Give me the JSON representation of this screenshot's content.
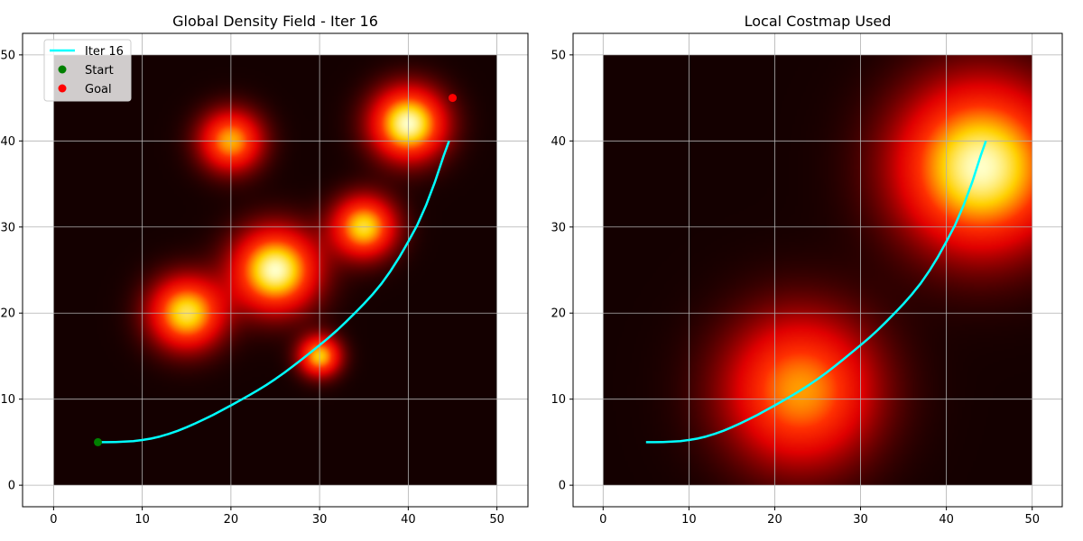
{
  "chart_data": [
    {
      "type": "heatmap",
      "title": "Global Density Field - Iter 16",
      "xlim": [
        -3.5,
        53.5
      ],
      "ylim": [
        -2.5,
        52.5
      ],
      "xticks": [
        0,
        10,
        20,
        30,
        40,
        50
      ],
      "yticks": [
        0,
        10,
        20,
        30,
        40,
        50
      ],
      "grid": true,
      "field_extent": [
        0,
        50,
        0,
        50
      ],
      "colormap": [
        "#140000",
        "#e00000",
        "#ff3000",
        "#ffd000",
        "#ffffc8"
      ],
      "blobs": [
        {
          "x": 20,
          "y": 40,
          "peak": 0.75,
          "sigma": 2.4
        },
        {
          "x": 40,
          "y": 42,
          "peak": 1.0,
          "sigma": 2.8
        },
        {
          "x": 35,
          "y": 30,
          "peak": 0.85,
          "sigma": 2.4
        },
        {
          "x": 25,
          "y": 25,
          "peak": 1.0,
          "sigma": 3.2
        },
        {
          "x": 15,
          "y": 20,
          "peak": 0.88,
          "sigma": 2.8
        },
        {
          "x": 30,
          "y": 15,
          "peak": 0.8,
          "sigma": 1.6
        }
      ],
      "series": [
        {
          "name": "Iter 16",
          "type": "line",
          "color": "#00ffff",
          "x": [
            5,
            6,
            7,
            8,
            9,
            10,
            11,
            12,
            13,
            14,
            15,
            16,
            17,
            18,
            19,
            20,
            21,
            22,
            23,
            24,
            25,
            26,
            27,
            28,
            29,
            30,
            31,
            32,
            33,
            34,
            35,
            36,
            37,
            38,
            39,
            40,
            41,
            42,
            43,
            44,
            44.6
          ],
          "y": [
            5,
            5,
            5.02,
            5.06,
            5.13,
            5.25,
            5.42,
            5.66,
            5.96,
            6.32,
            6.74,
            7.19,
            7.67,
            8.18,
            8.72,
            9.27,
            9.84,
            10.42,
            11.02,
            11.65,
            12.33,
            13.06,
            13.83,
            14.63,
            15.45,
            16.27,
            17.12,
            18.03,
            19.01,
            20.02,
            21.07,
            22.2,
            23.45,
            24.88,
            26.5,
            28.3,
            30.2,
            32.5,
            35.2,
            38.3,
            40
          ]
        },
        {
          "name": "Start",
          "type": "scatter",
          "color": "#008000",
          "x": [
            5
          ],
          "y": [
            5
          ]
        },
        {
          "name": "Goal",
          "type": "scatter",
          "color": "#ff0000",
          "x": [
            45
          ],
          "y": [
            45
          ]
        }
      ],
      "legend": {
        "placement": "top-left",
        "entries": [
          "Iter 16",
          "Start",
          "Goal"
        ]
      }
    },
    {
      "type": "heatmap",
      "title": "Local Costmap Used",
      "xlim": [
        -3.5,
        53.5
      ],
      "ylim": [
        -2.5,
        52.5
      ],
      "xticks": [
        0,
        10,
        20,
        30,
        40,
        50
      ],
      "yticks": [
        0,
        10,
        20,
        30,
        40,
        50
      ],
      "grid": true,
      "field_extent": [
        0,
        50,
        0,
        50
      ],
      "colormap": [
        "#140000",
        "#e00000",
        "#ff3000",
        "#ffd000",
        "#ffffc8"
      ],
      "blobs": [
        {
          "x": 44,
          "y": 37,
          "peak": 1.0,
          "sigma": 6.5
        },
        {
          "x": 23,
          "y": 11,
          "peak": 0.72,
          "sigma": 6.0
        }
      ],
      "series": [
        {
          "name": "",
          "type": "line",
          "color": "#00ffff",
          "x": [
            5,
            6,
            7,
            8,
            9,
            10,
            11,
            12,
            13,
            14,
            15,
            16,
            17,
            18,
            19,
            20,
            21,
            22,
            23,
            24,
            25,
            26,
            27,
            28,
            29,
            30,
            31,
            32,
            33,
            34,
            35,
            36,
            37,
            38,
            39,
            40,
            41,
            42,
            43,
            44,
            44.6
          ],
          "y": [
            5,
            5,
            5.02,
            5.06,
            5.13,
            5.25,
            5.42,
            5.66,
            5.96,
            6.32,
            6.74,
            7.19,
            7.67,
            8.18,
            8.72,
            9.27,
            9.84,
            10.42,
            11.02,
            11.65,
            12.33,
            13.06,
            13.83,
            14.63,
            15.45,
            16.27,
            17.12,
            18.03,
            19.01,
            20.02,
            21.07,
            22.2,
            23.45,
            24.88,
            26.5,
            28.3,
            30.2,
            32.5,
            35.2,
            38.3,
            40
          ]
        }
      ]
    }
  ]
}
